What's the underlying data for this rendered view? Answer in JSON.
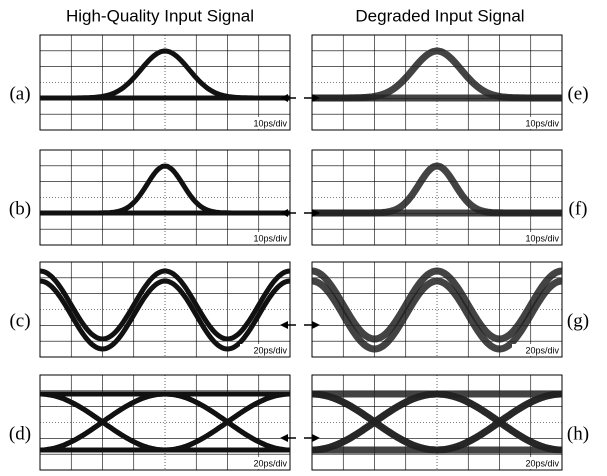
{
  "columns": [
    {
      "title": "High-Quality Input Signal"
    },
    {
      "title": "Degraded Input Signal"
    }
  ],
  "panels": [
    {
      "label": "(a)",
      "scale": "10ps/div"
    },
    {
      "label": "(b)",
      "scale": "10ps/div"
    },
    {
      "label": "(c)",
      "scale": "20ps/div"
    },
    {
      "label": "(d)",
      "scale": "20ps/div"
    },
    {
      "label": "(e)",
      "scale": "10ps/div"
    },
    {
      "label": "(f)",
      "scale": "10ps/div"
    },
    {
      "label": "(g)",
      "scale": "20ps/div"
    },
    {
      "label": "(h)",
      "scale": "20ps/div"
    }
  ]
}
